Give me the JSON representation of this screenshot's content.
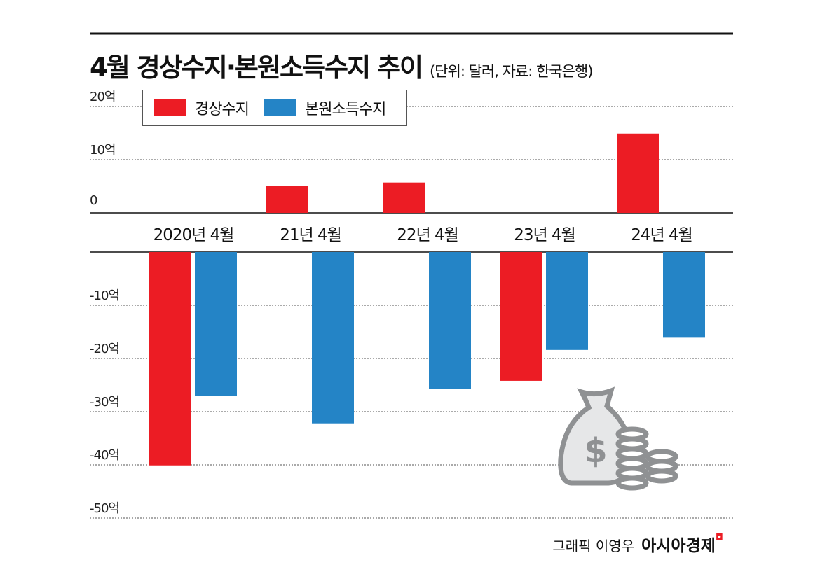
{
  "chart_data": {
    "type": "bar",
    "title": "4월 경상수지·본원소득수지 추이",
    "subtitle": "(단위: 달러, 자료: 한국은행)",
    "categories": [
      "2020년 4월",
      "21년 4월",
      "22년 4월",
      "23년 4월",
      "24년 4월"
    ],
    "series": [
      {
        "name": "경상수지",
        "color": "#ec1c24",
        "values": [
          -40.1,
          5.1,
          5.7,
          -24.2,
          14.9
        ]
      },
      {
        "name": "본원소득수지",
        "color": "#2484c6",
        "values": [
          -27.1,
          -32.2,
          -25.7,
          -18.4,
          -16.1
        ]
      }
    ],
    "yticks": [
      "20억",
      "10억",
      "0",
      "-10억",
      "-20억",
      "-30억",
      "-40억",
      "-50억"
    ],
    "ylim": [
      -50,
      20
    ],
    "unit": "억 달러",
    "grid": true,
    "legend": "top-left"
  },
  "footer": {
    "credit": "그래픽 이영우",
    "brand": "아시아경제"
  },
  "icon": "money-bag-coins-icon"
}
